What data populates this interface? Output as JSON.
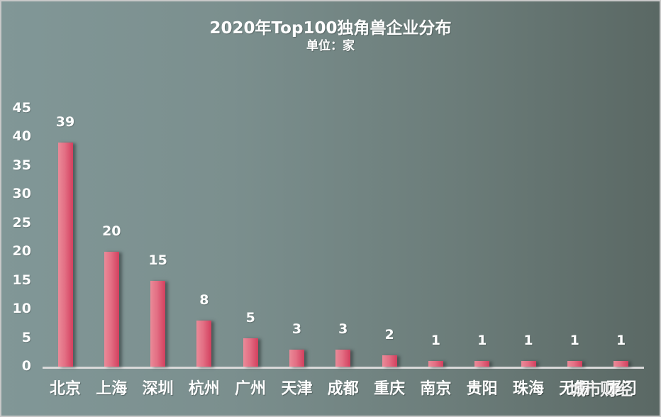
{
  "chart_data": {
    "type": "bar",
    "title": "2020年Top100独角兽企业分布",
    "subtitle": "单位：家",
    "xlabel": "",
    "ylabel": "",
    "categories": [
      "北京",
      "上海",
      "深圳",
      "杭州",
      "广州",
      "天津",
      "成都",
      "重庆",
      "南京",
      "贵阳",
      "珠海",
      "无锡",
      "厦门"
    ],
    "values": [
      39,
      20,
      15,
      8,
      5,
      3,
      3,
      2,
      1,
      1,
      1,
      1,
      1
    ],
    "ylim": [
      0,
      45
    ],
    "yticks": [
      0,
      5,
      10,
      15,
      20,
      25,
      30,
      35,
      40,
      45
    ],
    "grid": false,
    "legend": "none",
    "data_labels": true,
    "colors": {
      "bar": "#e36f84",
      "bar_dark": "#d3405e",
      "background_left": "#819797",
      "background_right": "#5a6864",
      "text": "#ffffff",
      "axis": "#d9d9d9"
    }
  },
  "watermark": "城市财经",
  "ytick_labels": [
    "45",
    "40",
    "35",
    "30",
    "25",
    "20",
    "15",
    "10",
    "5",
    "0"
  ],
  "bar_labels": [
    "39",
    "20",
    "15",
    "8",
    "5",
    "3",
    "3",
    "2",
    "1",
    "1",
    "1",
    "1",
    "1"
  ]
}
